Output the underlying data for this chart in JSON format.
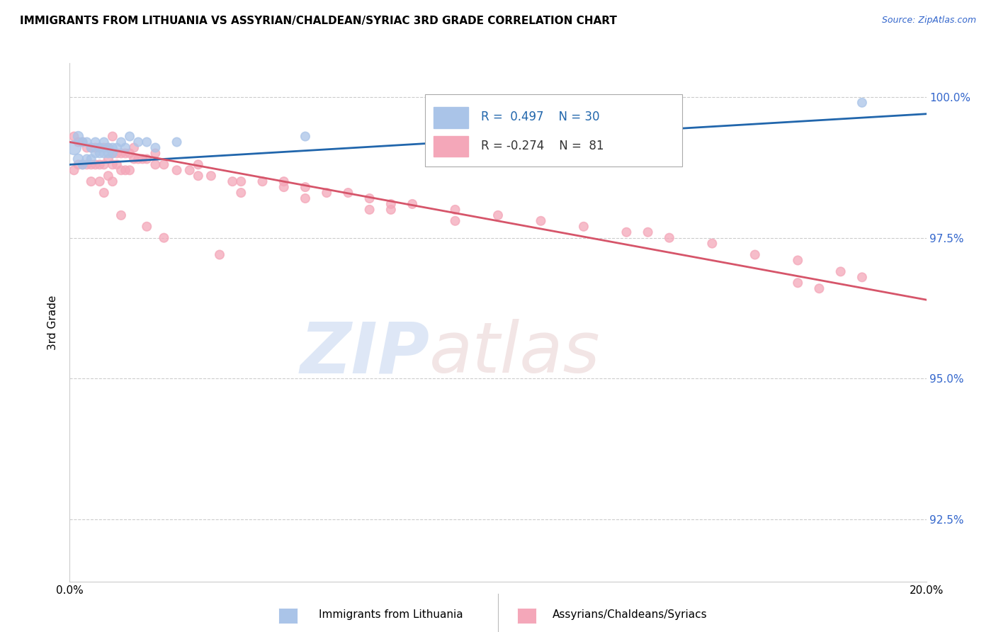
{
  "title": "IMMIGRANTS FROM LITHUANIA VS ASSYRIAN/CHALDEAN/SYRIAC 3RD GRADE CORRELATION CHART",
  "source": "Source: ZipAtlas.com",
  "ylabel": "3rd Grade",
  "xlim": [
    0.0,
    0.2
  ],
  "ylim": [
    0.914,
    1.006
  ],
  "yticks": [
    0.925,
    0.95,
    0.975,
    1.0
  ],
  "ytick_labels": [
    "92.5%",
    "95.0%",
    "97.5%",
    "100.0%"
  ],
  "blue_R": 0.497,
  "blue_N": 30,
  "pink_R": -0.274,
  "pink_N": 81,
  "blue_color": "#aac4e8",
  "pink_color": "#f4a7b9",
  "blue_line_color": "#2166ac",
  "pink_line_color": "#d6556a",
  "legend_blue_label": "Immigrants from Lithuania",
  "legend_pink_label": "Assyrians/Chaldeans/Syriacs",
  "blue_scatter_x": [
    0.001,
    0.002,
    0.002,
    0.003,
    0.003,
    0.004,
    0.004,
    0.005,
    0.005,
    0.006,
    0.006,
    0.007,
    0.007,
    0.008,
    0.008,
    0.009,
    0.009,
    0.01,
    0.01,
    0.011,
    0.012,
    0.013,
    0.014,
    0.016,
    0.018,
    0.02,
    0.025,
    0.055,
    0.13,
    0.185
  ],
  "blue_scatter_y": [
    0.991,
    0.993,
    0.989,
    0.992,
    0.988,
    0.992,
    0.989,
    0.991,
    0.989,
    0.992,
    0.99,
    0.991,
    0.99,
    0.992,
    0.99,
    0.991,
    0.99,
    0.991,
    0.99,
    0.991,
    0.992,
    0.991,
    0.993,
    0.992,
    0.992,
    0.991,
    0.992,
    0.993,
    0.995,
    0.999
  ],
  "blue_scatter_size": [
    200,
    100,
    100,
    80,
    80,
    80,
    80,
    80,
    80,
    80,
    80,
    80,
    80,
    80,
    80,
    80,
    80,
    80,
    80,
    80,
    80,
    80,
    80,
    80,
    80,
    80,
    80,
    80,
    80,
    80
  ],
  "pink_scatter_x": [
    0.001,
    0.001,
    0.002,
    0.002,
    0.003,
    0.003,
    0.004,
    0.004,
    0.005,
    0.005,
    0.005,
    0.006,
    0.006,
    0.007,
    0.007,
    0.007,
    0.008,
    0.008,
    0.009,
    0.009,
    0.009,
    0.01,
    0.01,
    0.01,
    0.011,
    0.011,
    0.012,
    0.012,
    0.013,
    0.013,
    0.014,
    0.014,
    0.015,
    0.016,
    0.017,
    0.018,
    0.02,
    0.022,
    0.025,
    0.028,
    0.03,
    0.033,
    0.038,
    0.04,
    0.045,
    0.05,
    0.055,
    0.06,
    0.065,
    0.07,
    0.075,
    0.08,
    0.09,
    0.1,
    0.11,
    0.12,
    0.13,
    0.135,
    0.14,
    0.15,
    0.16,
    0.17,
    0.18,
    0.185,
    0.008,
    0.012,
    0.018,
    0.022,
    0.035,
    0.17,
    0.175,
    0.04,
    0.055,
    0.07,
    0.09,
    0.01,
    0.015,
    0.02,
    0.03,
    0.05,
    0.075
  ],
  "pink_scatter_y": [
    0.993,
    0.987,
    0.992,
    0.988,
    0.992,
    0.988,
    0.991,
    0.988,
    0.991,
    0.988,
    0.985,
    0.991,
    0.988,
    0.991,
    0.988,
    0.985,
    0.991,
    0.988,
    0.991,
    0.989,
    0.986,
    0.99,
    0.988,
    0.985,
    0.99,
    0.988,
    0.99,
    0.987,
    0.99,
    0.987,
    0.99,
    0.987,
    0.989,
    0.989,
    0.989,
    0.989,
    0.988,
    0.988,
    0.987,
    0.987,
    0.986,
    0.986,
    0.985,
    0.985,
    0.985,
    0.984,
    0.984,
    0.983,
    0.983,
    0.982,
    0.981,
    0.981,
    0.98,
    0.979,
    0.978,
    0.977,
    0.976,
    0.976,
    0.975,
    0.974,
    0.972,
    0.971,
    0.969,
    0.968,
    0.983,
    0.979,
    0.977,
    0.975,
    0.972,
    0.967,
    0.966,
    0.983,
    0.982,
    0.98,
    0.978,
    0.993,
    0.991,
    0.99,
    0.988,
    0.985,
    0.98
  ],
  "pink_scatter_size": [
    80,
    80,
    80,
    80,
    80,
    80,
    80,
    80,
    80,
    80,
    80,
    80,
    80,
    80,
    80,
    80,
    80,
    80,
    80,
    80,
    80,
    80,
    80,
    80,
    80,
    80,
    80,
    80,
    80,
    80,
    80,
    80,
    80,
    80,
    80,
    80,
    80,
    80,
    80,
    80,
    80,
    80,
    80,
    80,
    80,
    80,
    80,
    80,
    80,
    80,
    80,
    80,
    80,
    80,
    80,
    80,
    80,
    80,
    80,
    80,
    80,
    80,
    80,
    80,
    80,
    80,
    80,
    80,
    80,
    80,
    80,
    80,
    80,
    80,
    80,
    80,
    80,
    80,
    80,
    80,
    80
  ],
  "blue_line_x": [
    0.0,
    0.2
  ],
  "blue_line_y": [
    0.988,
    0.997
  ],
  "pink_line_x": [
    0.0,
    0.2
  ],
  "pink_line_y": [
    0.992,
    0.964
  ]
}
